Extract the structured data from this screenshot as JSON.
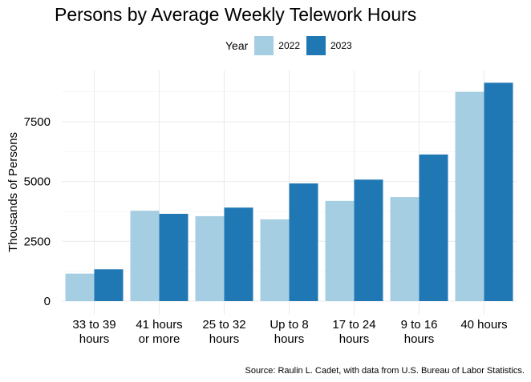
{
  "chart_data": {
    "type": "bar",
    "title": "Persons by Average Weekly Telework Hours",
    "xlabel": "",
    "ylabel": "Thousands of Persons",
    "categories": [
      [
        "33 to 39",
        "hours"
      ],
      [
        "41 hours",
        "or more"
      ],
      [
        "25 to 32",
        "hours"
      ],
      [
        "Up to 8",
        "hours"
      ],
      [
        "17 to 24",
        "hours"
      ],
      [
        "9 to 16",
        "hours"
      ],
      [
        "40 hours"
      ]
    ],
    "series": [
      {
        "name": "2022",
        "color": "#a6cee3",
        "values": [
          1150,
          3780,
          3550,
          3420,
          4190,
          4350,
          8750
        ]
      },
      {
        "name": "2023",
        "color": "#1f78b4",
        "values": [
          1330,
          3650,
          3910,
          4920,
          5080,
          6130,
          9130
        ]
      }
    ],
    "ylim": [
      0,
      9500
    ],
    "yticks": [
      0,
      2500,
      5000,
      7500
    ],
    "ytick_labels": [
      "0",
      "2500",
      "5000",
      "7500"
    ],
    "grid": true,
    "legend": {
      "title": "Year",
      "placement": "top"
    },
    "source": "Source: Raulin L. Cadet, with data from U.S. Bureau of Labor Statistics."
  }
}
